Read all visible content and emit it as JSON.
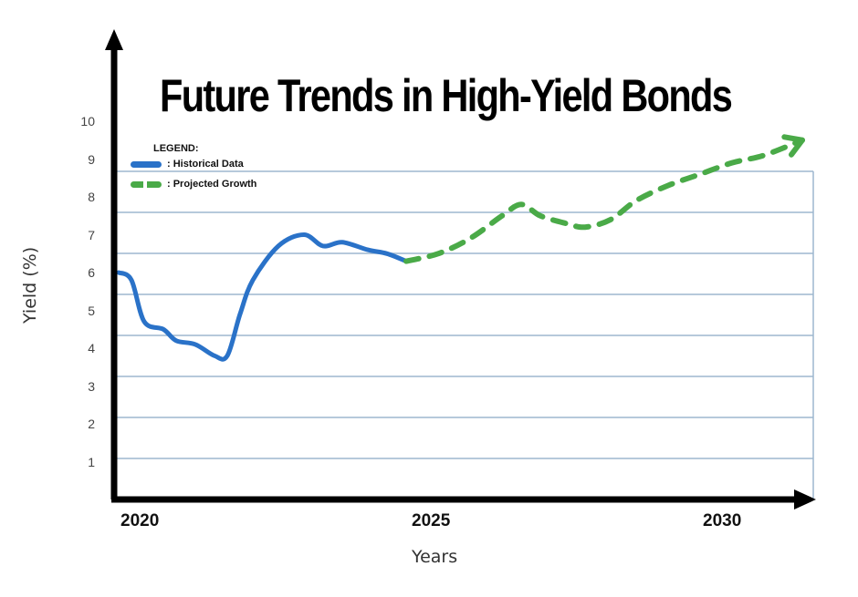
{
  "chart_data": {
    "type": "line",
    "title": "Future Trends in High-Yield Bonds",
    "xlabel": "Years",
    "ylabel": "Yield (%)",
    "x_ticks": [
      "2020",
      "2025",
      "2030"
    ],
    "y_ticks": [
      "1",
      "2",
      "3",
      "4",
      "5",
      "6",
      "7",
      "8",
      "9",
      "10"
    ],
    "ylim": [
      0,
      10
    ],
    "xlim": [
      2020,
      2031
    ],
    "grid": true,
    "legend": {
      "title": "LEGEND:",
      "position": "upper-left",
      "entries": [
        {
          "label": ": Historical Data",
          "color": "#2a72c8",
          "style": "solid"
        },
        {
          "label": ": Projected Growth",
          "color": "#4aaa48",
          "style": "dashed"
        }
      ]
    },
    "series": [
      {
        "name": "Historical Data",
        "color": "#2a72c8",
        "x": [
          2020.0,
          2020.2,
          2020.4,
          2020.7,
          2020.9,
          2021.2,
          2021.5,
          2021.7,
          2021.9,
          2022.1,
          2022.5,
          2022.9,
          2023.2,
          2023.5,
          2023.9,
          2024.2,
          2024.5
        ],
        "y": [
          6.0,
          5.8,
          4.7,
          4.5,
          4.2,
          4.1,
          3.8,
          3.8,
          4.9,
          5.8,
          6.7,
          7.0,
          6.7,
          6.8,
          6.6,
          6.5,
          6.3
        ]
      },
      {
        "name": "Projected Growth",
        "color": "#4aaa48",
        "x": [
          2024.5,
          2025.0,
          2025.5,
          2026.0,
          2026.3,
          2026.6,
          2027.0,
          2027.3,
          2027.7,
          2028.1,
          2028.6,
          2029.1,
          2029.6,
          2030.1,
          2030.7
        ],
        "y": [
          6.3,
          6.5,
          6.9,
          7.5,
          7.8,
          7.5,
          7.3,
          7.2,
          7.4,
          7.9,
          8.3,
          8.6,
          8.9,
          9.1,
          9.5
        ]
      }
    ]
  }
}
